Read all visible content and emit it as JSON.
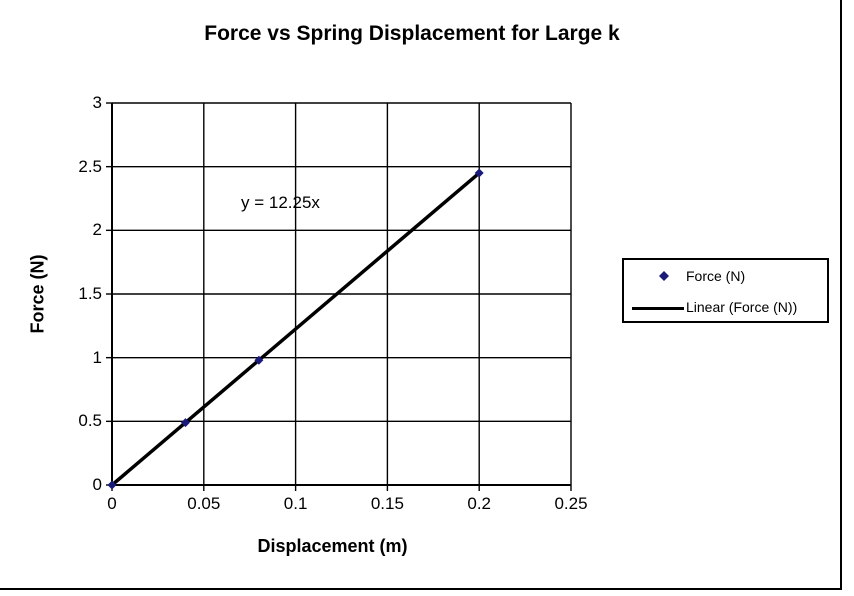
{
  "chart_data": {
    "type": "scatter",
    "title": "Force vs Spring Displacement for Large k",
    "xlabel": "Displacement (m)",
    "ylabel": "Force (N)",
    "xlim": [
      0,
      0.25
    ],
    "ylim": [
      0,
      3
    ],
    "x_ticks": [
      "0",
      "0.05",
      "0.1",
      "0.15",
      "0.2",
      "0.25"
    ],
    "y_ticks": [
      "0",
      "0.5",
      "1",
      "1.5",
      "2",
      "2.5",
      "3"
    ],
    "grid": true,
    "series": [
      {
        "name": "Force (N)",
        "marker": "diamond",
        "color": "#1a1a7a",
        "x": [
          0,
          0.04,
          0.08,
          0.2
        ],
        "y": [
          0,
          0.49,
          0.98,
          2.45
        ]
      }
    ],
    "trendline": {
      "name": "Linear (Force (N))",
      "type": "linear",
      "slope": 12.25,
      "intercept": 0,
      "x_range": [
        0,
        0.2
      ],
      "color": "#000000"
    },
    "annotation": "y = 12.25x",
    "legend_position": "right"
  }
}
